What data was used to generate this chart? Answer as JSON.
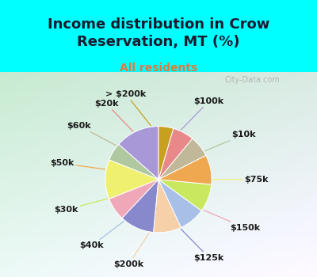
{
  "title": "Income distribution in Crow\nReservation, MT (%)",
  "subtitle": "All residents",
  "title_color": "#1a1a2e",
  "subtitle_color": "#e07840",
  "background_cyan": "#00ffff",
  "watermark": "City-Data.com",
  "labels": [
    "$100k",
    "$10k",
    "$75k",
    "$150k",
    "$125k",
    "$200k",
    "$40k",
    "$30k",
    "$50k",
    "$60k",
    "$20k",
    "> $200k"
  ],
  "values": [
    13.5,
    5.5,
    12.0,
    7.0,
    10.5,
    8.5,
    8.0,
    8.5,
    9.0,
    6.5,
    6.5,
    4.5
  ],
  "colors": [
    "#a898d8",
    "#b0c8a0",
    "#f0f070",
    "#f0a8b8",
    "#8888cc",
    "#f5d0a8",
    "#a8c0e8",
    "#c8e860",
    "#f0a850",
    "#c0b898",
    "#e88888",
    "#c8a020"
  ],
  "label_color": "#1a1a1a",
  "label_fontsize": 8,
  "startangle": 90,
  "figsize": [
    4.0,
    3.5
  ],
  "dpi": 100,
  "title_fontsize": 13,
  "subtitle_fontsize": 10
}
